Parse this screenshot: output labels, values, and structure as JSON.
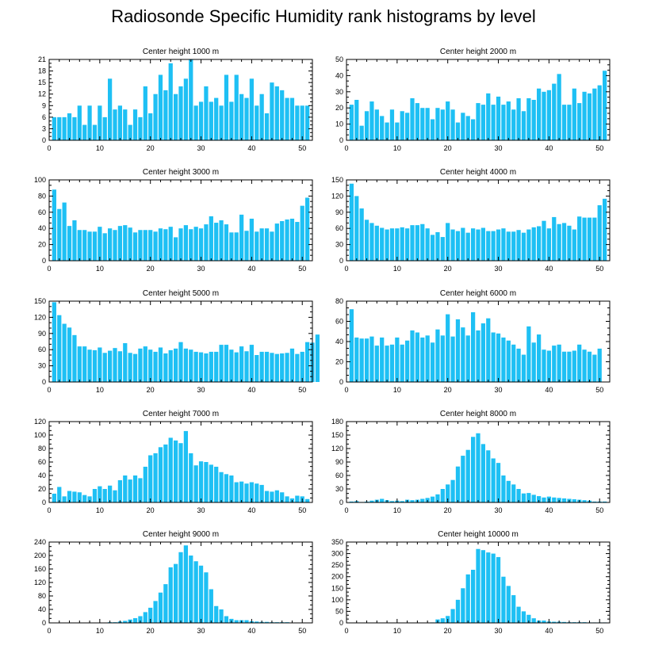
{
  "title": "Radiosonde Specific Humidity rank histograms by level",
  "colors": {
    "bar": "#1ec0f4",
    "axis": "#000000",
    "background": "#ffffff"
  },
  "chart_data": [
    {
      "type": "bar",
      "title": "Center height 1000 m",
      "xlim": [
        0,
        52
      ],
      "ylim": [
        0,
        21
      ],
      "xticks": [
        0,
        10,
        20,
        30,
        40,
        50
      ],
      "yticks": [
        0,
        3,
        6,
        9,
        12,
        15,
        18,
        21
      ],
      "values": [
        6,
        6,
        6,
        7,
        6,
        9,
        4,
        9,
        4,
        9,
        6,
        16,
        8,
        9,
        8,
        4,
        8,
        6,
        14,
        7,
        12,
        17,
        13,
        20,
        12,
        14,
        16,
        21,
        9,
        10,
        14,
        10,
        11,
        9,
        17,
        10,
        17,
        12,
        11,
        16,
        9,
        12,
        7,
        15,
        14,
        13,
        11,
        11,
        9,
        9,
        9
      ]
    },
    {
      "type": "bar",
      "title": "Center height 2000 m",
      "xlim": [
        0,
        52
      ],
      "ylim": [
        0,
        50
      ],
      "xticks": [
        0,
        10,
        20,
        30,
        40,
        50
      ],
      "yticks": [
        0,
        10,
        20,
        30,
        40,
        50
      ],
      "values": [
        22,
        25,
        9,
        18,
        24,
        19,
        15,
        11,
        19,
        11,
        18,
        17,
        26,
        23,
        20,
        20,
        13,
        20,
        19,
        24,
        19,
        11,
        17,
        15,
        13,
        23,
        22,
        29,
        22,
        27,
        22,
        24,
        19,
        26,
        18,
        26,
        25,
        32,
        30,
        31,
        35,
        41,
        22,
        22,
        32,
        23,
        30,
        29,
        32,
        34,
        43
      ]
    },
    {
      "type": "bar",
      "title": "Center height 3000 m",
      "xlim": [
        0,
        52
      ],
      "ylim": [
        0,
        100
      ],
      "xticks": [
        0,
        10,
        20,
        30,
        40,
        50
      ],
      "yticks": [
        0,
        20,
        40,
        60,
        80,
        100
      ],
      "values": [
        88,
        64,
        72,
        43,
        50,
        38,
        38,
        36,
        36,
        42,
        34,
        40,
        38,
        43,
        44,
        41,
        35,
        38,
        38,
        38,
        36,
        40,
        39,
        42,
        29,
        40,
        44,
        39,
        42,
        40,
        45,
        55,
        47,
        50,
        45,
        35,
        35,
        57,
        37,
        52,
        36,
        40,
        40,
        36,
        46,
        49,
        51,
        52,
        48,
        68,
        78
      ]
    },
    {
      "type": "bar",
      "title": "Center height 4000 m",
      "xlim": [
        0,
        52
      ],
      "ylim": [
        0,
        150
      ],
      "xticks": [
        0,
        10,
        20,
        30,
        40,
        50
      ],
      "yticks": [
        0,
        30,
        60,
        90,
        120,
        150
      ],
      "values": [
        143,
        120,
        97,
        76,
        70,
        65,
        61,
        58,
        60,
        60,
        62,
        60,
        66,
        66,
        68,
        60,
        48,
        53,
        44,
        70,
        58,
        55,
        61,
        52,
        60,
        58,
        61,
        55,
        55,
        58,
        60,
        54,
        54,
        57,
        52,
        58,
        62,
        64,
        74,
        60,
        81,
        68,
        70,
        65,
        58,
        82,
        80,
        80,
        80,
        103,
        115
      ]
    },
    {
      "type": "bar",
      "title": "Center height 5000 m",
      "xlim": [
        0,
        52
      ],
      "ylim": [
        0,
        150
      ],
      "xticks": [
        0,
        10,
        20,
        30,
        40,
        50
      ],
      "yticks": [
        0,
        30,
        60,
        90,
        120,
        150
      ],
      "values": [
        148,
        124,
        108,
        101,
        87,
        66,
        66,
        60,
        59,
        64,
        54,
        58,
        63,
        57,
        72,
        54,
        52,
        62,
        66,
        60,
        56,
        64,
        53,
        59,
        62,
        74,
        62,
        60,
        56,
        55,
        53,
        56,
        56,
        69,
        69,
        60,
        55,
        66,
        57,
        69,
        50,
        56,
        56,
        54,
        52,
        53,
        54,
        62,
        52,
        56,
        74,
        73,
        88
      ]
    },
    {
      "type": "bar",
      "title": "Center height 6000 m",
      "xlim": [
        0,
        52
      ],
      "ylim": [
        0,
        80
      ],
      "xticks": [
        0,
        10,
        20,
        30,
        40,
        50
      ],
      "yticks": [
        0,
        20,
        40,
        60,
        80
      ],
      "values": [
        72,
        44,
        43,
        43,
        45,
        36,
        44,
        36,
        37,
        44,
        37,
        41,
        51,
        49,
        44,
        46,
        39,
        52,
        46,
        67,
        45,
        62,
        54,
        46,
        69,
        51,
        58,
        63,
        49,
        48,
        44,
        41,
        37,
        33,
        27,
        55,
        39,
        47,
        32,
        31,
        36,
        37,
        30,
        30,
        31,
        37,
        32,
        30,
        27,
        33
      ]
    },
    {
      "type": "bar",
      "title": "Center height 7000 m",
      "xlim": [
        0,
        52
      ],
      "ylim": [
        0,
        120
      ],
      "xticks": [
        0,
        10,
        20,
        30,
        40,
        50
      ],
      "yticks": [
        0,
        20,
        40,
        60,
        80,
        100,
        120
      ],
      "values": [
        13,
        23,
        9,
        17,
        16,
        15,
        11,
        9,
        20,
        24,
        20,
        25,
        18,
        33,
        40,
        34,
        40,
        36,
        53,
        70,
        73,
        82,
        86,
        96,
        92,
        88,
        106,
        73,
        55,
        61,
        60,
        56,
        53,
        45,
        42,
        40,
        30,
        31,
        28,
        30,
        28,
        26,
        17,
        16,
        18,
        15,
        9,
        6,
        10,
        9,
        5
      ]
    },
    {
      "type": "bar",
      "title": "Center height 8000 m",
      "xlim": [
        0,
        52
      ],
      "ylim": [
        0,
        180
      ],
      "xticks": [
        0,
        10,
        20,
        30,
        40,
        50
      ],
      "yticks": [
        0,
        30,
        60,
        90,
        120,
        150,
        180
      ],
      "values": [
        2,
        3,
        1,
        2,
        4,
        6,
        8,
        5,
        3,
        4,
        3,
        6,
        5,
        6,
        8,
        10,
        13,
        18,
        30,
        40,
        50,
        80,
        104,
        117,
        146,
        154,
        130,
        116,
        98,
        88,
        60,
        48,
        40,
        30,
        20,
        21,
        17,
        14,
        11,
        13,
        11,
        10,
        9,
        8,
        7,
        6,
        5,
        4,
        2,
        2,
        2
      ]
    },
    {
      "type": "bar",
      "title": "Center height 9000 m",
      "xlim": [
        0,
        52
      ],
      "ylim": [
        0,
        240
      ],
      "xticks": [
        0,
        10,
        20,
        30,
        40,
        50
      ],
      "yticks": [
        0,
        40,
        80,
        120,
        160,
        200,
        240
      ],
      "values": [
        0,
        0,
        0,
        0,
        0,
        0,
        0,
        0,
        0,
        0,
        1,
        2,
        2,
        4,
        6,
        10,
        14,
        20,
        32,
        45,
        65,
        90,
        115,
        165,
        175,
        210,
        230,
        200,
        183,
        170,
        150,
        100,
        50,
        40,
        20,
        12,
        8,
        8,
        8,
        5,
        4,
        3,
        3,
        2,
        2,
        2,
        2,
        1,
        1,
        1,
        1
      ]
    },
    {
      "type": "bar",
      "title": "Center height 10000 m",
      "xlim": [
        0,
        52
      ],
      "ylim": [
        0,
        350
      ],
      "xticks": [
        0,
        10,
        20,
        30,
        40,
        50
      ],
      "yticks": [
        0,
        50,
        100,
        150,
        200,
        250,
        300,
        350
      ],
      "values": [
        0,
        0,
        0,
        0,
        0,
        0,
        0,
        0,
        0,
        0,
        0,
        0,
        0,
        0,
        0,
        0,
        2,
        15,
        20,
        30,
        60,
        100,
        150,
        210,
        230,
        320,
        315,
        305,
        300,
        285,
        200,
        160,
        120,
        70,
        50,
        35,
        20,
        10,
        10,
        6,
        5,
        5,
        4,
        3,
        3,
        3,
        3,
        2,
        2,
        2,
        2
      ]
    }
  ]
}
